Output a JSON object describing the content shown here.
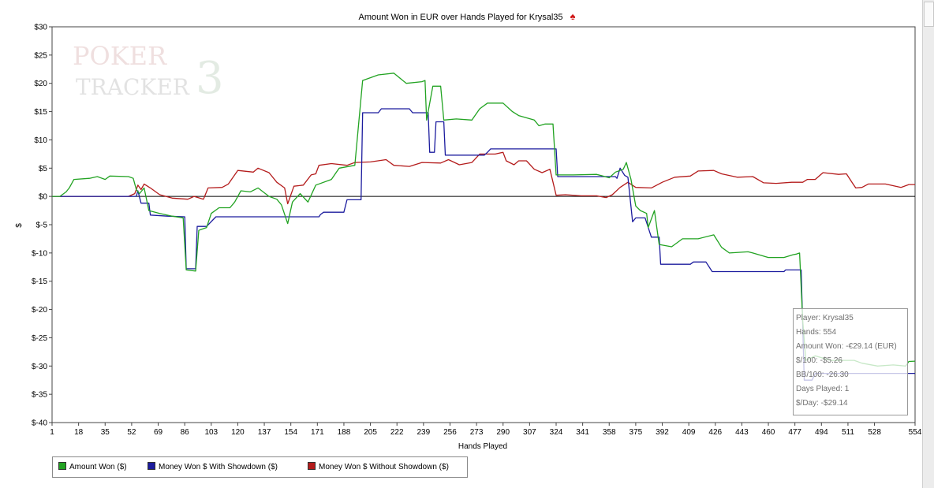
{
  "chart_data": {
    "type": "line",
    "title": "Amount Won in EUR over Hands Played for Krysal35",
    "xlabel": "Hands Played",
    "ylabel": "$",
    "xlim": [
      1,
      554
    ],
    "ylim": [
      -40,
      30
    ],
    "x_ticks": [
      "1",
      "18",
      "35",
      "52",
      "69",
      "86",
      "103",
      "120",
      "137",
      "154",
      "171",
      "188",
      "205",
      "222",
      "239",
      "256",
      "273",
      "290",
      "307",
      "324",
      "341",
      "358",
      "375",
      "392",
      "409",
      "426",
      "443",
      "460",
      "477",
      "494",
      "511",
      "528",
      "554"
    ],
    "y_ticks": [
      "$30",
      "$25",
      "$20",
      "$15",
      "$10",
      "$5",
      "$0",
      "$-5",
      "$-10",
      "$-15",
      "$-20",
      "$-25",
      "$-30",
      "$-35",
      "$-40"
    ],
    "grid": false,
    "legend_position": "bottom-left",
    "series": [
      {
        "name": "Amount Won ($)",
        "color": "#22a322",
        "points": [
          [
            1,
            0
          ],
          [
            6,
            0
          ],
          [
            10,
            0.8
          ],
          [
            12,
            1.5
          ],
          [
            15,
            3
          ],
          [
            25,
            3.2
          ],
          [
            30,
            3.5
          ],
          [
            35,
            3
          ],
          [
            38,
            3.6
          ],
          [
            50,
            3.5
          ],
          [
            53,
            3.2
          ],
          [
            55,
            1.2
          ],
          [
            57,
            0.5
          ],
          [
            60,
            1.5
          ],
          [
            63,
            -2.5
          ],
          [
            70,
            -3
          ],
          [
            78,
            -3.5
          ],
          [
            85,
            -3.8
          ],
          [
            87,
            -13
          ],
          [
            93,
            -13.2
          ],
          [
            95,
            -6
          ],
          [
            100,
            -5.5
          ],
          [
            103,
            -3
          ],
          [
            108,
            -2
          ],
          [
            115,
            -2
          ],
          [
            118,
            -1
          ],
          [
            122,
            1
          ],
          [
            128,
            0.8
          ],
          [
            133,
            1.5
          ],
          [
            140,
            0
          ],
          [
            145,
            -0.5
          ],
          [
            148,
            -1.5
          ],
          [
            152,
            -4.8
          ],
          [
            155,
            -1
          ],
          [
            160,
            0.5
          ],
          [
            165,
            -1
          ],
          [
            170,
            2
          ],
          [
            180,
            3
          ],
          [
            185,
            5
          ],
          [
            195,
            5.5
          ],
          [
            200,
            20.5
          ],
          [
            210,
            21.5
          ],
          [
            220,
            21.8
          ],
          [
            228,
            20
          ],
          [
            238,
            20.3
          ],
          [
            240,
            20.5
          ],
          [
            241,
            13.5
          ],
          [
            245,
            19.5
          ],
          [
            250,
            19.5
          ],
          [
            252,
            13.5
          ],
          [
            260,
            13.7
          ],
          [
            270,
            13.5
          ],
          [
            275,
            15.5
          ],
          [
            280,
            16.5
          ],
          [
            290,
            16.5
          ],
          [
            296,
            15
          ],
          [
            300,
            14.3
          ],
          [
            310,
            13.5
          ],
          [
            313,
            12.5
          ],
          [
            317,
            12.8
          ],
          [
            322,
            12.8
          ],
          [
            324,
            3.8
          ],
          [
            335,
            3.8
          ],
          [
            350,
            3.9
          ],
          [
            358,
            3.3
          ],
          [
            362,
            4.3
          ],
          [
            367,
            4.8
          ],
          [
            369,
            6
          ],
          [
            372,
            3
          ],
          [
            375,
            -1.7
          ],
          [
            378,
            -2.5
          ],
          [
            382,
            -3
          ],
          [
            383,
            -5.5
          ],
          [
            387,
            -2.5
          ],
          [
            390,
            -8.5
          ],
          [
            398,
            -8.9
          ],
          [
            405,
            -7.5
          ],
          [
            415,
            -7.5
          ],
          [
            425,
            -6.8
          ],
          [
            430,
            -9
          ],
          [
            435,
            -10
          ],
          [
            447,
            -9.8
          ],
          [
            450,
            -10
          ],
          [
            460,
            -10.8
          ],
          [
            470,
            -10.8
          ],
          [
            476,
            -10.3
          ],
          [
            478,
            -10.2
          ],
          [
            480,
            -10
          ],
          [
            482,
            -22
          ],
          [
            484,
            -29
          ],
          [
            490,
            -28.2
          ],
          [
            500,
            -29
          ],
          [
            515,
            -29
          ],
          [
            520,
            -29.5
          ],
          [
            530,
            -30
          ],
          [
            540,
            -29.8
          ],
          [
            548,
            -30
          ],
          [
            550,
            -29.2
          ],
          [
            554,
            -29.14
          ]
        ]
      },
      {
        "name": "Money Won $ With Showdown ($)",
        "color": "#1c1c9e",
        "points": [
          [
            1,
            0
          ],
          [
            55,
            0
          ],
          [
            56,
            1
          ],
          [
            58,
            -1.2
          ],
          [
            63,
            -1.2
          ],
          [
            64,
            -3.3
          ],
          [
            75,
            -3.5
          ],
          [
            86,
            -3.6
          ],
          [
            87,
            -12.8
          ],
          [
            93,
            -12.8
          ],
          [
            94,
            -5.3
          ],
          [
            100,
            -5.3
          ],
          [
            106,
            -3.6
          ],
          [
            160,
            -3.6
          ],
          [
            172,
            -3.6
          ],
          [
            173,
            -3.2
          ],
          [
            175,
            -2.8
          ],
          [
            188,
            -2.8
          ],
          [
            190,
            -0.6
          ],
          [
            199,
            -0.6
          ],
          [
            200,
            14.8
          ],
          [
            210,
            14.8
          ],
          [
            212,
            15.5
          ],
          [
            230,
            15.5
          ],
          [
            232,
            14.8
          ],
          [
            242,
            14.8
          ],
          [
            243,
            7.8
          ],
          [
            246,
            7.8
          ],
          [
            247,
            13.2
          ],
          [
            252,
            13.2
          ],
          [
            253,
            7.3
          ],
          [
            278,
            7.3
          ],
          [
            280,
            7.8
          ],
          [
            282,
            8.4
          ],
          [
            324,
            8.4
          ],
          [
            325,
            3.5
          ],
          [
            362,
            3.5
          ],
          [
            363,
            3.2
          ],
          [
            365,
            5
          ],
          [
            368,
            3.7
          ],
          [
            370,
            3.4
          ],
          [
            373,
            -4.5
          ],
          [
            375,
            -3.8
          ],
          [
            381,
            -3.8
          ],
          [
            385,
            -7.2
          ],
          [
            390,
            -7.2
          ],
          [
            391,
            -12
          ],
          [
            410,
            -12
          ],
          [
            412,
            -11.6
          ],
          [
            420,
            -11.6
          ],
          [
            424,
            -13.3
          ],
          [
            470,
            -13.3
          ],
          [
            471,
            -13
          ],
          [
            481,
            -13
          ],
          [
            483,
            -32.5
          ],
          [
            488,
            -32.5
          ],
          [
            490,
            -31.3
          ],
          [
            554,
            -31.3
          ]
        ]
      },
      {
        "name": "Money Won $ Without Showdown ($)",
        "color": "#b41c1c",
        "points": [
          [
            1,
            0
          ],
          [
            50,
            0
          ],
          [
            54,
            0.5
          ],
          [
            56,
            2
          ],
          [
            58,
            1.2
          ],
          [
            60,
            2.2
          ],
          [
            64,
            1.5
          ],
          [
            70,
            0.3
          ],
          [
            78,
            -0.3
          ],
          [
            88,
            -0.5
          ],
          [
            92,
            0
          ],
          [
            98,
            -0.5
          ],
          [
            101,
            1.5
          ],
          [
            110,
            1.6
          ],
          [
            114,
            2.2
          ],
          [
            120,
            4.6
          ],
          [
            130,
            4.3
          ],
          [
            133,
            5
          ],
          [
            140,
            4.2
          ],
          [
            145,
            2.5
          ],
          [
            150,
            1.5
          ],
          [
            152,
            -1.3
          ],
          [
            156,
            1.8
          ],
          [
            162,
            2
          ],
          [
            167,
            3.8
          ],
          [
            170,
            4
          ],
          [
            172,
            5.5
          ],
          [
            180,
            5.8
          ],
          [
            190,
            5.5
          ],
          [
            195,
            6
          ],
          [
            205,
            6.1
          ],
          [
            215,
            6.5
          ],
          [
            220,
            5.5
          ],
          [
            230,
            5.3
          ],
          [
            238,
            6
          ],
          [
            250,
            5.9
          ],
          [
            255,
            6.5
          ],
          [
            262,
            5.6
          ],
          [
            270,
            6
          ],
          [
            275,
            7.5
          ],
          [
            285,
            7.5
          ],
          [
            290,
            7.8
          ],
          [
            292,
            6.3
          ],
          [
            297,
            5.6
          ],
          [
            300,
            6.3
          ],
          [
            305,
            6.3
          ],
          [
            310,
            4.8
          ],
          [
            315,
            4.2
          ],
          [
            320,
            4.8
          ],
          [
            324,
            0.2
          ],
          [
            330,
            0.3
          ],
          [
            340,
            0.1
          ],
          [
            350,
            0.1
          ],
          [
            356,
            -0.2
          ],
          [
            360,
            0.3
          ],
          [
            365,
            1.6
          ],
          [
            370,
            2.5
          ],
          [
            375,
            1.6
          ],
          [
            385,
            1.5
          ],
          [
            392,
            2.5
          ],
          [
            400,
            3.4
          ],
          [
            410,
            3.6
          ],
          [
            415,
            4.5
          ],
          [
            425,
            4.6
          ],
          [
            430,
            4
          ],
          [
            440,
            3.4
          ],
          [
            450,
            3.5
          ],
          [
            457,
            2.4
          ],
          [
            465,
            2.3
          ],
          [
            475,
            2.5
          ],
          [
            482,
            2.5
          ],
          [
            485,
            3
          ],
          [
            490,
            3
          ],
          [
            495,
            4.2
          ],
          [
            505,
            3.9
          ],
          [
            510,
            4
          ],
          [
            514,
            2.3
          ],
          [
            516,
            1.5
          ],
          [
            520,
            1.6
          ],
          [
            524,
            2.2
          ],
          [
            535,
            2.2
          ],
          [
            545,
            1.6
          ],
          [
            550,
            2.1
          ],
          [
            554,
            2.1
          ]
        ]
      }
    ]
  },
  "stats_box": {
    "player": "Player: Krysal35",
    "hands": "Hands: 554",
    "amount_won": "Amount Won: -€29.14 (EUR)",
    "per_100": "$/100: -$5.26",
    "bb_per_100": "BB/100: -26.30",
    "days_played": "Days Played: 1",
    "per_day": "$/Day: -$29.14"
  },
  "logo": {
    "line1": "POKER",
    "line2": "TRACKER",
    "mark": "3"
  },
  "title_icon": "spade-icon",
  "axis_zero_color": "#000000"
}
